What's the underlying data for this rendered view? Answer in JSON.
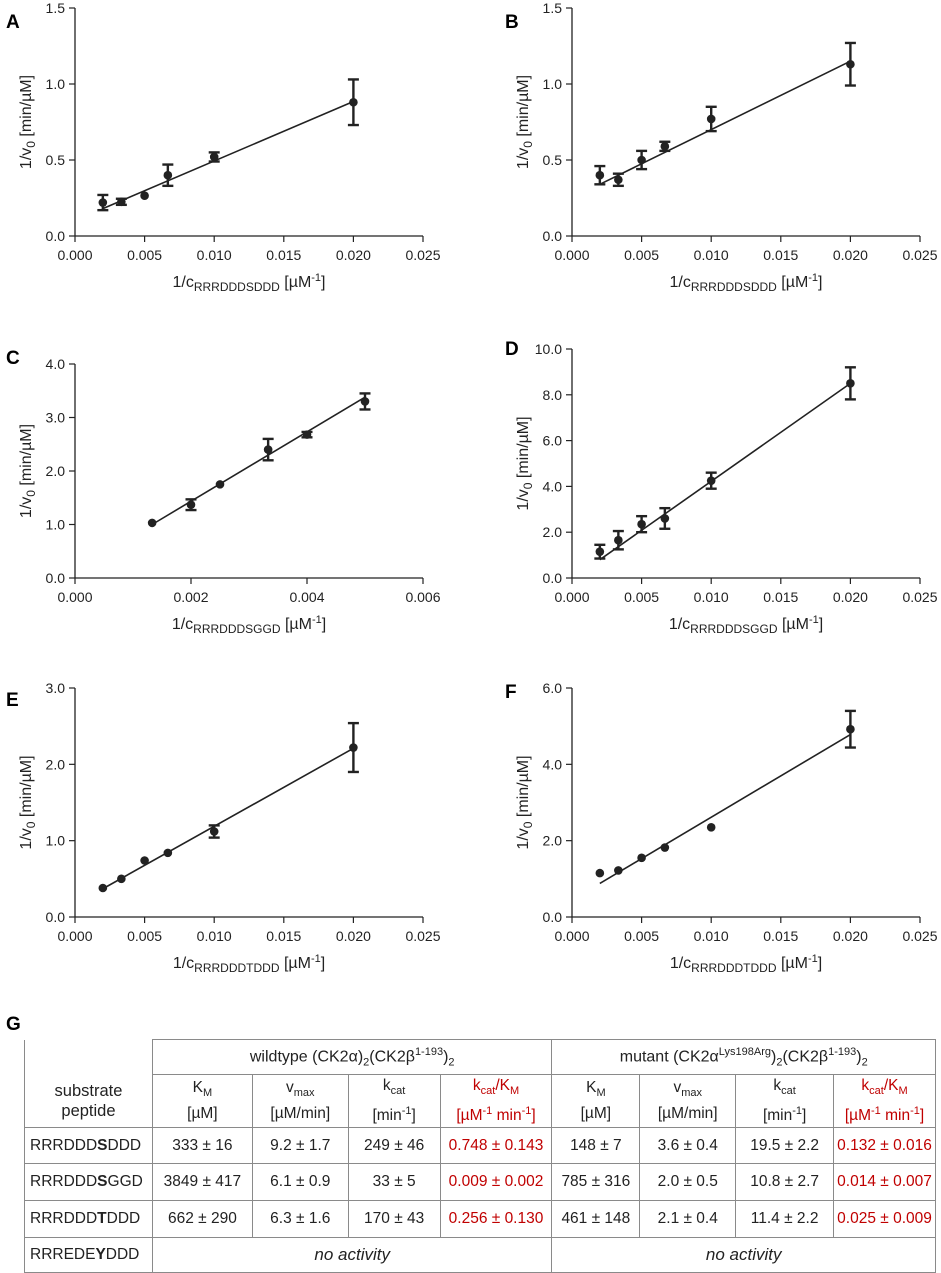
{
  "chart_data": [
    {
      "panel": "A",
      "type": "scatter",
      "fit": "linear",
      "x": [
        0.002,
        0.00333,
        0.005,
        0.00667,
        0.01,
        0.02
      ],
      "y": [
        0.22,
        0.225,
        0.265,
        0.4,
        0.52,
        0.88
      ],
      "err": [
        0.05,
        0.02,
        0,
        0.07,
        0.03,
        0.15
      ],
      "fit_line": [
        [
          0.002,
          0.18
        ],
        [
          0.02,
          0.885
        ]
      ],
      "xlim": [
        0,
        0.025
      ],
      "ylim": [
        0,
        1.5
      ],
      "xticks": [
        "0.000",
        "0.005",
        "0.010",
        "0.015",
        "0.020",
        "0.025"
      ],
      "yticks": [
        "0.0",
        "0.5",
        "1.0",
        "1.5"
      ],
      "ylabel": "1/v",
      "ylabel_sub": "0",
      "ylabel_unit": "[min/µM]",
      "xlabel": "1/c",
      "xlabel_sub": "RRRDDDSDDD",
      "xlabel_unit": "[µM",
      "xlabel_sup": "-1",
      "xlabel_end": "]"
    },
    {
      "panel": "B",
      "type": "scatter",
      "fit": "linear",
      "x": [
        0.002,
        0.00333,
        0.005,
        0.00667,
        0.01,
        0.02
      ],
      "y": [
        0.4,
        0.37,
        0.5,
        0.59,
        0.77,
        1.13
      ],
      "err": [
        0.06,
        0.04,
        0.06,
        0.03,
        0.08,
        0.14
      ],
      "fit_line": [
        [
          0.002,
          0.34
        ],
        [
          0.02,
          1.15
        ]
      ],
      "xlim": [
        0,
        0.025
      ],
      "ylim": [
        0,
        1.5
      ],
      "xticks": [
        "0.000",
        "0.005",
        "0.010",
        "0.015",
        "0.020",
        "0.025"
      ],
      "yticks": [
        "0.0",
        "0.5",
        "1.0",
        "1.5"
      ],
      "ylabel": "1/v",
      "ylabel_sub": "0",
      "ylabel_unit": "[min/µM]",
      "xlabel": "1/c",
      "xlabel_sub": "RRRDDDSDDD",
      "xlabel_unit": "[µM",
      "xlabel_sup": "-1",
      "xlabel_end": "]"
    },
    {
      "panel": "C",
      "type": "scatter",
      "fit": "linear",
      "x": [
        0.00133,
        0.002,
        0.0025,
        0.00333,
        0.004,
        0.005
      ],
      "y": [
        1.03,
        1.37,
        1.75,
        2.4,
        2.68,
        3.3
      ],
      "err": [
        0,
        0.1,
        0,
        0.2,
        0.05,
        0.15
      ],
      "fit_line": [
        [
          0.00133,
          1.0
        ],
        [
          0.005,
          3.38
        ]
      ],
      "xlim": [
        0,
        0.006
      ],
      "ylim": [
        0,
        4.0
      ],
      "xticks": [
        "0.000",
        "0.002",
        "0.004",
        "0.006"
      ],
      "yticks": [
        "0.0",
        "1.0",
        "2.0",
        "3.0",
        "4.0"
      ],
      "ylabel": "1/v",
      "ylabel_sub": "0",
      "ylabel_unit": "[min/µM]",
      "xlabel": "1/c",
      "xlabel_sub": "RRRDDDSGGD",
      "xlabel_unit": "[µM",
      "xlabel_sup": "-1",
      "xlabel_end": "]"
    },
    {
      "panel": "D",
      "type": "scatter",
      "fit": "linear",
      "x": [
        0.002,
        0.00333,
        0.005,
        0.00667,
        0.01,
        0.02
      ],
      "y": [
        1.15,
        1.65,
        2.35,
        2.6,
        4.25,
        8.5
      ],
      "err": [
        0.3,
        0.4,
        0.35,
        0.45,
        0.35,
        0.7
      ],
      "fit_line": [
        [
          0.002,
          0.8
        ],
        [
          0.02,
          8.5
        ]
      ],
      "xlim": [
        0,
        0.025
      ],
      "ylim": [
        0,
        10.0
      ],
      "xticks": [
        "0.000",
        "0.005",
        "0.010",
        "0.015",
        "0.020",
        "0.025"
      ],
      "yticks": [
        "0.0",
        "2.0",
        "4.0",
        "6.0",
        "8.0",
        "10.0"
      ],
      "ylabel": "1/v",
      "ylabel_sub": "0",
      "ylabel_unit": "[min/µM]",
      "xlabel": "1/c",
      "xlabel_sub": "RRRDDDSGGD",
      "xlabel_unit": "[µM",
      "xlabel_sup": "-1",
      "xlabel_end": "]"
    },
    {
      "panel": "E",
      "type": "scatter",
      "fit": "linear",
      "x": [
        0.002,
        0.00333,
        0.005,
        0.00667,
        0.01,
        0.02
      ],
      "y": [
        0.38,
        0.5,
        0.74,
        0.84,
        1.12,
        2.22
      ],
      "err": [
        0,
        0,
        0,
        0,
        0.08,
        0.32
      ],
      "fit_line": [
        [
          0.002,
          0.37
        ],
        [
          0.02,
          2.21
        ]
      ],
      "xlim": [
        0,
        0.025
      ],
      "ylim": [
        0,
        3.0
      ],
      "xticks": [
        "0.000",
        "0.005",
        "0.010",
        "0.015",
        "0.020",
        "0.025"
      ],
      "yticks": [
        "0.0",
        "1.0",
        "2.0",
        "3.0"
      ],
      "ylabel": "1/v",
      "ylabel_sub": "0",
      "ylabel_unit": "[min/µM]",
      "xlabel": "1/c",
      "xlabel_sub": "RRRDDDTDDD",
      "xlabel_unit": "[µM",
      "xlabel_sup": "-1",
      "xlabel_end": "]"
    },
    {
      "panel": "F",
      "type": "scatter",
      "fit": "linear",
      "x": [
        0.002,
        0.00333,
        0.005,
        0.00667,
        0.01,
        0.02
      ],
      "y": [
        1.15,
        1.22,
        1.55,
        1.82,
        2.35,
        4.92
      ],
      "err": [
        0,
        0,
        0,
        0,
        0,
        0.48
      ],
      "fit_line": [
        [
          0.002,
          0.88
        ],
        [
          0.02,
          4.78
        ]
      ],
      "xlim": [
        0,
        0.025
      ],
      "ylim": [
        0,
        6.0
      ],
      "xticks": [
        "0.000",
        "0.005",
        "0.010",
        "0.015",
        "0.020",
        "0.025"
      ],
      "yticks": [
        "0.0",
        "2.0",
        "4.0",
        "6.0"
      ],
      "ylabel": "1/v",
      "ylabel_sub": "0",
      "ylabel_unit": "[min/µM]",
      "xlabel": "1/c",
      "xlabel_sub": "RRRDDDTDDD",
      "xlabel_unit": "[µM",
      "xlabel_sup": "-1",
      "xlabel_end": "]"
    }
  ],
  "table": {
    "panel": "G",
    "header": {
      "substrate_l1": "substrate",
      "substrate_l2": "peptide",
      "wt": {
        "p1": "wildtype (CK2",
        "alpha": "α",
        "p2": ")",
        "s1": "2",
        "p3": "(CK2",
        "beta": "β",
        "sup": "1-193",
        "p4": ")",
        "s2": "2"
      },
      "mut": {
        "p1": "mutant (CK2",
        "alpha": "α",
        "sup1": "Lys198Arg",
        "p2": ")",
        "s1": "2",
        "p3": "(CK2",
        "beta": "β",
        "sup2": "1-193",
        "p4": ")",
        "s2": "2"
      },
      "km": {
        "main": "K",
        "sub": "M",
        "unit": "[µM]"
      },
      "vmax": {
        "main": "v",
        "sub": "max",
        "unit": "[µM/min]"
      },
      "kcat": {
        "main": "k",
        "sub": "cat",
        "unit_a": "[min",
        "unit_sup": "-1",
        "unit_b": "]"
      },
      "kcatkm": {
        "a": "k",
        "a_sub": "cat",
        "slash": "/K",
        "b_sub": "M",
        "u1": "[µM",
        "u1_sup": "-1",
        "u2": " min",
        "u2_sup": "-1",
        "u3": "]"
      }
    },
    "rows": [
      {
        "pre": "RRRDDD",
        "bold": "S",
        "post": "DDD",
        "wt": [
          "333 ± 16",
          "9.2 ± 1.7",
          "249 ± 46",
          "0.748 ± 0.143"
        ],
        "mut": [
          "148 ± 7",
          "3.6 ± 0.4",
          "19.5 ± 2.2",
          "0.132 ± 0.016"
        ]
      },
      {
        "pre": "RRRDDD",
        "bold": "S",
        "post": "GGD",
        "wt": [
          "3849 ± 417",
          "6.1 ± 0.9",
          "33 ± 5",
          "0.009 ± 0.002"
        ],
        "mut": [
          "785 ± 316",
          "2.0 ± 0.5",
          "10.8 ± 2.7",
          "0.014 ± 0.007"
        ]
      },
      {
        "pre": "RRRDDD",
        "bold": "T",
        "post": "DDD",
        "wt": [
          "662 ± 290",
          "6.3 ± 1.6",
          "170 ± 43",
          "0.256 ± 0.130"
        ],
        "mut": [
          "461 ± 148",
          "2.1 ± 0.4",
          "11.4 ± 2.2",
          "0.025 ± 0.009"
        ]
      },
      {
        "pre": "RRREDE",
        "bold": "Y",
        "post": "DDD",
        "wt_text": "no activity",
        "mut_text": "no activity"
      }
    ]
  },
  "colors": {
    "ink": "#222222",
    "red": "#c00000",
    "grid": "#8a8a8a"
  }
}
